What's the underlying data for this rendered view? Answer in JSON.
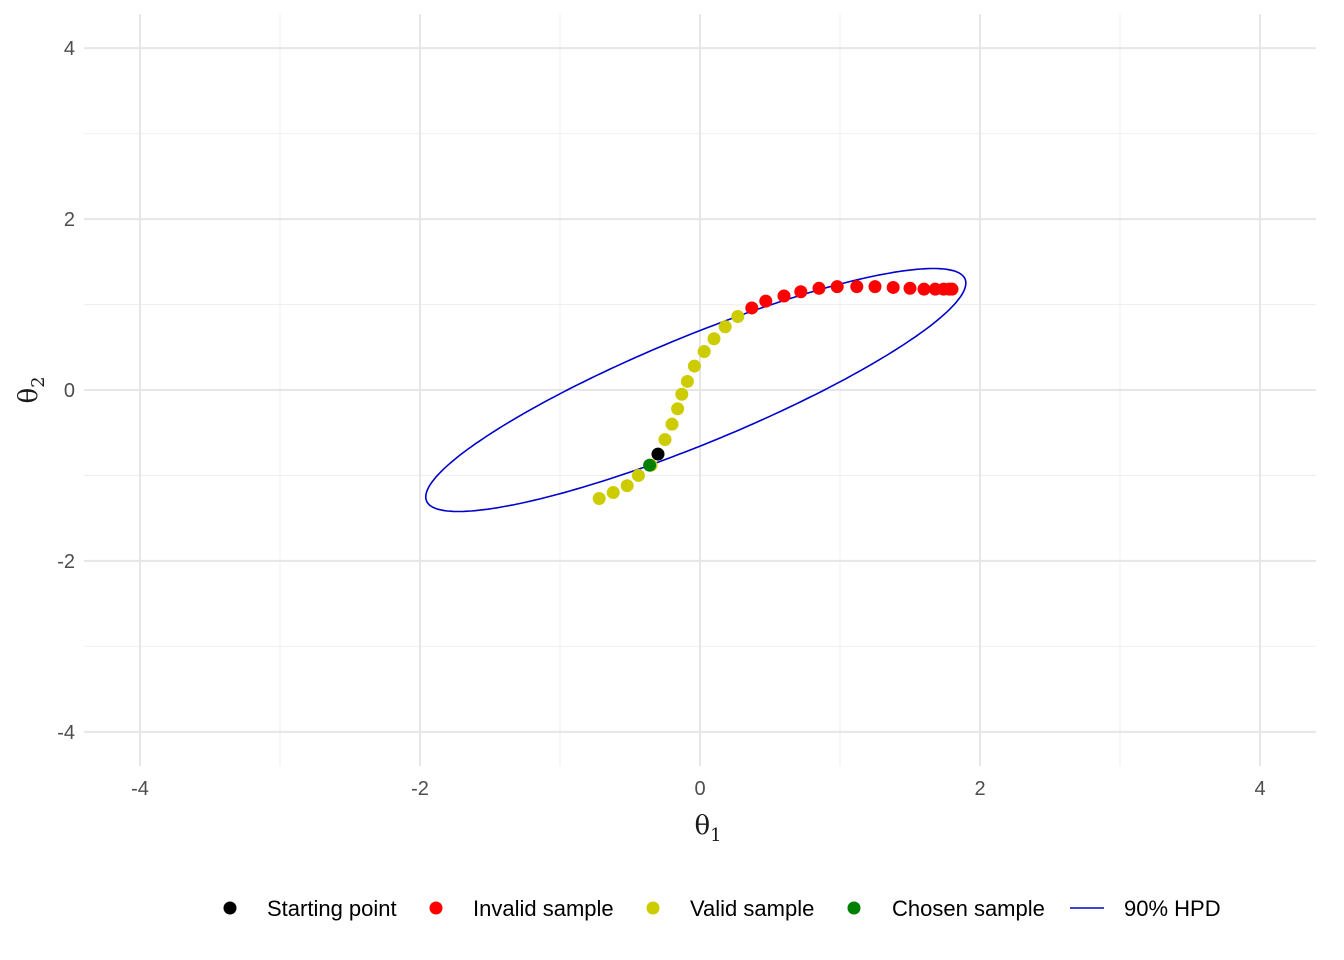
{
  "chart_data": {
    "type": "scatter",
    "xlabel": {
      "base": "θ",
      "sub": "1"
    },
    "ylabel": {
      "base": "θ",
      "sub": "2"
    },
    "xlim": [
      -4.4,
      4.4
    ],
    "ylim": [
      -4.4,
      4.4
    ],
    "x_ticks": [
      -4,
      -2,
      0,
      2,
      4
    ],
    "y_ticks": [
      -4,
      -2,
      0,
      2,
      4
    ],
    "x_tick_labels": [
      "-4",
      "-2",
      "0",
      "2",
      "4"
    ],
    "y_tick_labels": [
      "-4",
      "-2",
      "0",
      "2",
      "4"
    ],
    "grid": true,
    "legend_position": "bottom",
    "series": [
      {
        "name": "Starting point",
        "color": "#000000",
        "points": [
          [
            -0.3,
            -0.75
          ]
        ]
      },
      {
        "name": "Invalid sample",
        "color": "#ff0000",
        "points": [
          [
            0.37,
            0.96
          ],
          [
            0.47,
            1.04
          ],
          [
            0.6,
            1.1
          ],
          [
            0.72,
            1.15
          ],
          [
            0.85,
            1.19
          ],
          [
            0.98,
            1.21
          ],
          [
            1.12,
            1.21
          ],
          [
            1.25,
            1.21
          ],
          [
            1.38,
            1.2
          ],
          [
            1.5,
            1.19
          ],
          [
            1.6,
            1.18
          ],
          [
            1.68,
            1.18
          ],
          [
            1.74,
            1.18
          ],
          [
            1.78,
            1.18
          ],
          [
            1.8,
            1.18
          ]
        ]
      },
      {
        "name": "Valid sample",
        "color": "#cccc00",
        "points": [
          [
            -0.72,
            -1.27
          ],
          [
            -0.62,
            -1.2
          ],
          [
            -0.52,
            -1.12
          ],
          [
            -0.44,
            -1.0
          ],
          [
            -0.35,
            -0.88
          ],
          [
            -0.25,
            -0.58
          ],
          [
            -0.2,
            -0.4
          ],
          [
            -0.16,
            -0.22
          ],
          [
            -0.13,
            -0.05
          ],
          [
            -0.09,
            0.1
          ],
          [
            -0.04,
            0.28
          ],
          [
            0.03,
            0.45
          ],
          [
            0.1,
            0.6
          ],
          [
            0.18,
            0.74
          ],
          [
            0.27,
            0.86
          ]
        ]
      },
      {
        "name": "Chosen sample",
        "color": "#008000",
        "points": [
          [
            -0.36,
            -0.88
          ]
        ]
      }
    ],
    "hpd": {
      "name": "90% HPD",
      "color": "#0000cd",
      "center": [
        -0.03,
        0.0
      ],
      "semi_major": 2.33,
      "semi_minor": 0.56,
      "angle_deg": 35.3
    }
  }
}
